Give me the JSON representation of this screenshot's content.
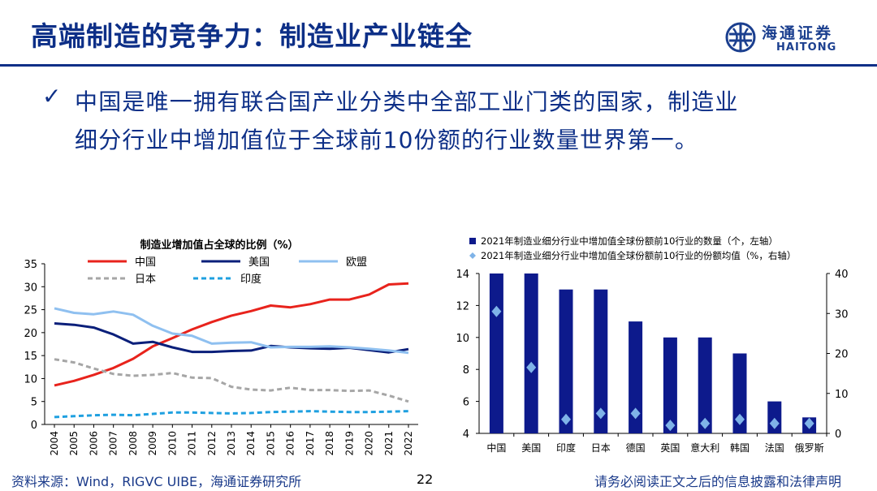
{
  "page": {
    "title": "高端制造的竞争力：制造业产业链全",
    "bullet": "✓",
    "body_line1": "中国是唯一拥有联合国产业分类中全部工业门类的国家，制造业",
    "body_line2": "细分行业中增加值位于全球前10份额的行业数量世界第一。",
    "logo_cn": "海通证券",
    "logo_en": "HAITONG",
    "footer_source": "资料来源：Wind，RIGVC UIBE，海通证券研究所",
    "page_number": "22",
    "footer_note": "请务必阅读正文之后的信息披露和法律声明"
  },
  "colors": {
    "brand": "#0d2f87",
    "china": "#e8231c",
    "usa": "#0a1f7a",
    "eu": "#8fc0f0",
    "japan": "#a6a6a6",
    "india": "#1fa0e0",
    "bar": "#0d1a8c",
    "diamond": "#7fb3e8"
  },
  "chart_data": [
    {
      "type": "line",
      "title": "制造业增加值占全球的比例（%）",
      "x": [
        "2004",
        "2005",
        "2006",
        "2007",
        "2008",
        "2009",
        "2010",
        "2011",
        "2012",
        "2013",
        "2014",
        "2015",
        "2016",
        "2017",
        "2018",
        "2019",
        "2020",
        "2021",
        "2022"
      ],
      "ylim": [
        0,
        35
      ],
      "yticks": [
        0,
        5,
        10,
        15,
        20,
        25,
        30,
        35
      ],
      "series": [
        {
          "name": "中国",
          "color": "#e8231c",
          "dash": "",
          "values": [
            8.5,
            9.5,
            10.8,
            12.3,
            14.3,
            17.0,
            18.8,
            20.7,
            22.3,
            23.7,
            24.7,
            25.9,
            25.5,
            26.2,
            27.2,
            27.2,
            28.3,
            30.5,
            30.7
          ]
        },
        {
          "name": "美国",
          "color": "#0a1f7a",
          "dash": "",
          "values": [
            22.0,
            21.7,
            21.1,
            19.6,
            17.6,
            18.0,
            16.8,
            15.8,
            15.8,
            16.0,
            16.1,
            17.1,
            16.8,
            16.6,
            16.5,
            16.7,
            16.2,
            15.7,
            16.4
          ]
        },
        {
          "name": "欧盟",
          "color": "#8fc0f0",
          "dash": "",
          "values": [
            25.3,
            24.3,
            24.0,
            24.6,
            23.9,
            21.5,
            19.8,
            19.3,
            17.6,
            17.8,
            17.9,
            16.8,
            16.9,
            16.9,
            17.0,
            16.8,
            16.5,
            16.1,
            15.6
          ]
        },
        {
          "name": "日本",
          "color": "#a6a6a6",
          "dash": "6,4",
          "values": [
            14.2,
            13.5,
            12.2,
            11.0,
            10.6,
            10.8,
            11.2,
            10.2,
            10.1,
            8.2,
            7.6,
            7.4,
            8.0,
            7.5,
            7.5,
            7.3,
            7.4,
            6.3,
            5.0
          ]
        },
        {
          "name": "印度",
          "color": "#1fa0e0",
          "dash": "6,4",
          "values": [
            1.6,
            1.8,
            2.0,
            2.1,
            2.0,
            2.3,
            2.6,
            2.6,
            2.5,
            2.4,
            2.5,
            2.7,
            2.8,
            2.9,
            2.8,
            2.7,
            2.7,
            2.8,
            2.9
          ]
        }
      ]
    },
    {
      "type": "bar",
      "categories": [
        "中国",
        "美国",
        "印度",
        "日本",
        "德国",
        "英国",
        "意大利",
        "韩国",
        "法国",
        "俄罗斯"
      ],
      "series": [
        {
          "name": "2021年制造业细分行业中增加值全球份额前10行业的数量（个，左轴）",
          "axis": "left",
          "values": [
            14,
            14,
            13,
            13,
            11,
            10,
            10,
            9,
            6,
            5
          ]
        },
        {
          "name": "2021年制造业细分行业中增加值全球份额前10行业的份额均值（%，右轴）",
          "axis": "right",
          "values": [
            30.5,
            16.5,
            3.5,
            5.0,
            5.0,
            2.0,
            2.5,
            3.5,
            2.5,
            2.5
          ]
        }
      ],
      "ylim_left": [
        4,
        14
      ],
      "yticks_left": [
        4,
        6,
        8,
        10,
        12,
        14
      ],
      "ylim_right": [
        0,
        40
      ],
      "yticks_right": [
        0,
        10,
        20,
        30,
        40
      ]
    }
  ]
}
